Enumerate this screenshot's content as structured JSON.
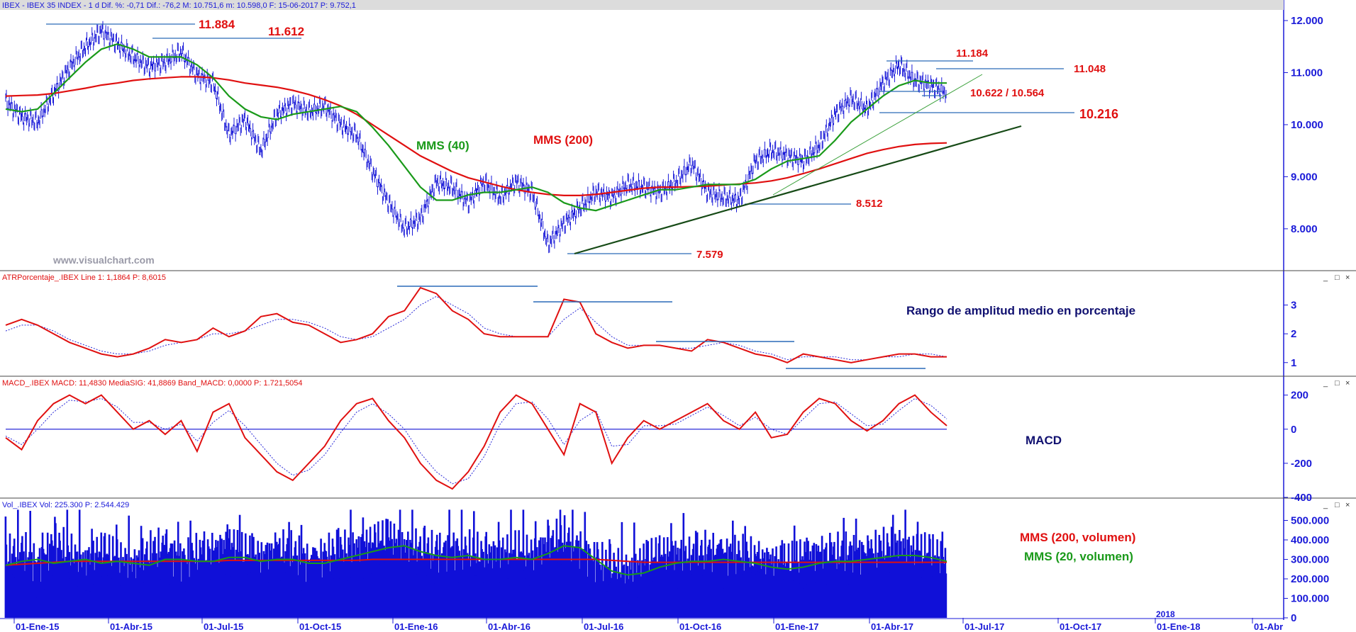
{
  "panels": {
    "price": {
      "header": "IBEX - IBEX 35 INDEX -  1 d  Dif. %: -0,71  Dif.: -76,2  M: 10.751,6  m: 10.598,0  F: 15-06-2017  P: 9.752,1"
    },
    "atr": {
      "header": "ATRPorcentaje_.IBEX  Line 1: 1,1864  P: 8,6015"
    },
    "macd": {
      "header": "MACD_.IBEX  MACD: 11,4830  MediaSIG: 41,8869  Band_MACD: 0,0000  P: 1.721,5054"
    },
    "vol": {
      "header": "Vol_.IBEX  Vol: 225.300  P: 2.544.429"
    }
  },
  "watermark": "www.visualchart.com",
  "colors": {
    "price_bars": "#1a1ad8",
    "mms40": "#1a9a1a",
    "mms200": "#e01010",
    "annotation_red": "#e01010",
    "annotation_green": "#1a9a1a",
    "annotation_navy": "#101070",
    "level_lines": "#2a6ab8",
    "axis_text": "#1a1ad8",
    "header_bg": "#dcdcdc"
  },
  "chart_data": [
    {
      "type": "line",
      "name": "price",
      "x_ticks": [
        "01-Ene-15",
        "01-Abr-15",
        "01-Jul-15",
        "01-Oct-15",
        "01-Ene-16",
        "01-Abr-16",
        "01-Jul-16",
        "01-Oct-16",
        "01-Ene-17",
        "01-Abr-17",
        "01-Jul-17",
        "01-Oct-17",
        "01-Ene-18",
        "01-Abr"
      ],
      "year_label": "2018",
      "y_ticks": [
        "12.000",
        "11.000",
        "10.000",
        "9.000",
        "8.000"
      ],
      "ylim": [
        7250,
        12150
      ],
      "series": [
        {
          "name": "",
          "values": [
            10450,
            10150,
            10050,
            10600,
            11100,
            11500,
            11800,
            11550,
            11300,
            11100,
            11200,
            11400,
            10950,
            10800,
            9800,
            10100,
            9500,
            10200,
            10400,
            10250,
            10350,
            10000,
            9800,
            9100,
            8500,
            8000,
            8200,
            8900,
            8800,
            8500,
            8900,
            8600,
            8900,
            8700,
            7700,
            8100,
            8400,
            8700,
            8600,
            8850,
            8800,
            8700,
            8900,
            9250,
            8700,
            8600,
            8550,
            9300,
            9500,
            9400,
            9300,
            9600,
            10200,
            10500,
            10300,
            10800,
            11150,
            10850,
            10750,
            10620
          ]
        },
        {
          "name": "MMS (40)",
          "values": [
            10300,
            10250,
            10300,
            10600,
            10900,
            11200,
            11450,
            11550,
            11450,
            11300,
            11300,
            11300,
            11150,
            10900,
            10550,
            10300,
            10150,
            10100,
            10200,
            10250,
            10300,
            10350,
            10250,
            9950,
            9600,
            9200,
            8800,
            8550,
            8550,
            8650,
            8700,
            8700,
            8750,
            8800,
            8700,
            8500,
            8400,
            8350,
            8450,
            8550,
            8650,
            8750,
            8750,
            8800,
            8850,
            8850,
            8850,
            8950,
            9150,
            9300,
            9350,
            9400,
            9700,
            10050,
            10300,
            10550,
            10750,
            10850,
            10800,
            10800
          ]
        },
        {
          "name": "MMS (200)",
          "values": [
            10550,
            10560,
            10570,
            10600,
            10650,
            10700,
            10760,
            10800,
            10850,
            10880,
            10900,
            10920,
            10920,
            10900,
            10860,
            10800,
            10760,
            10720,
            10660,
            10580,
            10480,
            10360,
            10200,
            10000,
            9800,
            9600,
            9400,
            9250,
            9100,
            8980,
            8900,
            8820,
            8750,
            8700,
            8660,
            8640,
            8640,
            8660,
            8700,
            8740,
            8780,
            8800,
            8800,
            8810,
            8820,
            8840,
            8860,
            8880,
            8920,
            8980,
            9060,
            9150,
            9250,
            9350,
            9450,
            9520,
            9580,
            9620,
            9640,
            9650
          ]
        }
      ],
      "annotations": [
        "11.884",
        "11.612",
        "11.184",
        "11.048",
        "10.622 / 10.564",
        "10.216",
        "8.512",
        "7.579",
        "MMS (40)",
        "MMS (200)"
      ]
    },
    {
      "type": "line",
      "name": "atr",
      "title": "Rango de amplitud medio en porcentaje",
      "y_ticks": [
        "3",
        "2",
        "1"
      ],
      "ylim": [
        0.6,
        3.8
      ],
      "series": [
        {
          "name": "",
          "values": [
            2.3,
            2.5,
            2.3,
            2.0,
            1.7,
            1.5,
            1.3,
            1.2,
            1.3,
            1.5,
            1.8,
            1.7,
            1.8,
            2.2,
            1.9,
            2.1,
            2.6,
            2.7,
            2.4,
            2.3,
            2.0,
            1.7,
            1.8,
            2.0,
            2.6,
            2.8,
            3.6,
            3.4,
            2.8,
            2.5,
            2.0,
            1.9,
            1.9,
            1.9,
            1.9,
            3.2,
            3.1,
            2.0,
            1.7,
            1.5,
            1.6,
            1.6,
            1.5,
            1.4,
            1.8,
            1.7,
            1.5,
            1.3,
            1.2,
            1.0,
            1.3,
            1.2,
            1.1,
            1.0,
            1.1,
            1.2,
            1.3,
            1.3,
            1.2,
            1.2
          ]
        },
        {
          "name": "",
          "values": [
            2.1,
            2.3,
            2.3,
            2.1,
            1.8,
            1.6,
            1.4,
            1.3,
            1.3,
            1.4,
            1.6,
            1.7,
            1.8,
            2.0,
            2.0,
            2.1,
            2.3,
            2.5,
            2.5,
            2.4,
            2.2,
            1.9,
            1.8,
            1.9,
            2.2,
            2.5,
            3.0,
            3.3,
            3.0,
            2.7,
            2.2,
            2.0,
            1.9,
            1.9,
            1.9,
            2.5,
            2.9,
            2.4,
            1.9,
            1.6,
            1.6,
            1.6,
            1.5,
            1.5,
            1.6,
            1.7,
            1.6,
            1.4,
            1.3,
            1.1,
            1.2,
            1.2,
            1.2,
            1.1,
            1.1,
            1.2,
            1.2,
            1.3,
            1.3,
            1.2
          ]
        }
      ]
    },
    {
      "type": "line",
      "name": "macd",
      "title": "MACD",
      "y_ticks": [
        "200",
        "0",
        "-200",
        "-400"
      ],
      "ylim": [
        -400,
        240
      ],
      "series": [
        {
          "name": "",
          "values": [
            -50,
            -120,
            50,
            150,
            200,
            150,
            200,
            100,
            0,
            50,
            -30,
            50,
            -130,
            100,
            150,
            -50,
            -150,
            -250,
            -300,
            -200,
            -100,
            50,
            150,
            180,
            50,
            -50,
            -200,
            -300,
            -350,
            -250,
            -100,
            100,
            200,
            150,
            0,
            -150,
            150,
            100,
            -200,
            -50,
            50,
            0,
            50,
            100,
            150,
            50,
            0,
            100,
            -50,
            -30,
            100,
            180,
            150,
            50,
            -10,
            50,
            150,
            200,
            100,
            20
          ]
        },
        {
          "name": "",
          "values": [
            -40,
            -90,
            0,
            100,
            170,
            160,
            180,
            130,
            40,
            40,
            0,
            30,
            -70,
            40,
            110,
            20,
            -90,
            -200,
            -270,
            -240,
            -150,
            -20,
            100,
            150,
            90,
            0,
            -140,
            -250,
            -320,
            -290,
            -160,
            30,
            150,
            160,
            60,
            -90,
            50,
            110,
            -100,
            -90,
            20,
            20,
            30,
            80,
            130,
            80,
            20,
            70,
            0,
            -30,
            60,
            150,
            160,
            90,
            20,
            30,
            110,
            180,
            140,
            60
          ]
        }
      ]
    },
    {
      "type": "bar",
      "name": "volume",
      "y_ticks": [
        "500.000",
        "400.000",
        "300.000",
        "200.000",
        "100.000",
        "0"
      ],
      "ylim": [
        0,
        560000
      ],
      "series": [
        {
          "name": "Vol",
          "values": [
            280000,
            320000,
            250000,
            350000,
            300000,
            260000,
            310000,
            280000,
            240000,
            300000,
            330000,
            270000,
            290000,
            310000,
            350000,
            300000,
            280000,
            320000,
            300000,
            260000,
            290000,
            310000,
            330000,
            350000,
            380000,
            340000,
            320000,
            300000,
            330000,
            310000,
            290000,
            300000,
            320000,
            290000,
            350000,
            380000,
            330000,
            260000,
            230000,
            210000,
            260000,
            290000,
            300000,
            280000,
            310000,
            300000,
            290000,
            270000,
            260000,
            250000,
            280000,
            300000,
            290000,
            310000,
            300000,
            320000,
            340000,
            310000,
            300000,
            260000
          ]
        },
        {
          "name": "MMS (20, volumen)",
          "values": [
            270000,
            290000,
            300000,
            280000,
            290000,
            300000,
            280000,
            290000,
            280000,
            270000,
            300000,
            300000,
            290000,
            290000,
            310000,
            310000,
            290000,
            300000,
            300000,
            280000,
            280000,
            300000,
            320000,
            340000,
            360000,
            370000,
            340000,
            320000,
            310000,
            320000,
            300000,
            300000,
            310000,
            300000,
            330000,
            370000,
            360000,
            300000,
            240000,
            220000,
            230000,
            260000,
            280000,
            290000,
            290000,
            300000,
            290000,
            280000,
            260000,
            250000,
            260000,
            280000,
            290000,
            290000,
            300000,
            310000,
            320000,
            320000,
            310000,
            290000
          ]
        },
        {
          "name": "MMS (200, volumen)",
          "values": [
            270000,
            275000,
            280000,
            285000,
            290000,
            290000,
            290000,
            290000,
            290000,
            290000,
            290000,
            290000,
            290000,
            290000,
            295000,
            295000,
            295000,
            295000,
            295000,
            295000,
            295000,
            295000,
            295000,
            300000,
            300000,
            300000,
            300000,
            300000,
            300000,
            300000,
            300000,
            300000,
            300000,
            300000,
            300000,
            300000,
            300000,
            300000,
            295000,
            290000,
            285000,
            285000,
            285000,
            285000,
            285000,
            285000,
            285000,
            285000,
            285000,
            285000,
            285000,
            285000,
            285000,
            285000,
            285000,
            285000,
            285000,
            285000,
            285000,
            285000
          ]
        }
      ],
      "annotations": [
        "MMS (200, volumen)",
        "MMS (20, volumen)"
      ]
    }
  ]
}
